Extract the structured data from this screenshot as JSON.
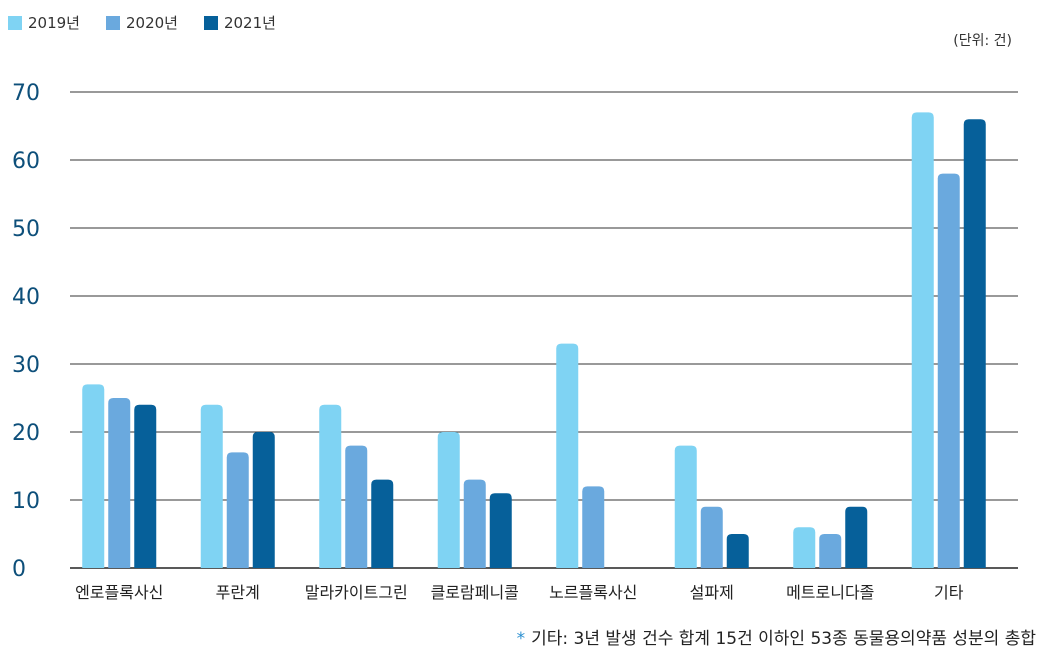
{
  "chart_data": {
    "type": "bar",
    "categories": [
      "엔로플록사신",
      "푸란계",
      "말라카이트그린",
      "클로람페니콜",
      "노르플록사신",
      "설파제",
      "메트로니다졸",
      "기타"
    ],
    "series": [
      {
        "name": "2019년",
        "color": "#7fd3f3",
        "values": [
          27,
          24,
          24,
          20,
          33,
          18,
          6,
          67
        ]
      },
      {
        "name": "2020년",
        "color": "#6aa9de",
        "values": [
          25,
          17,
          18,
          13,
          12,
          9,
          5,
          58
        ]
      },
      {
        "name": "2021년",
        "color": "#06609a",
        "values": [
          24,
          20,
          13,
          11,
          0,
          5,
          9,
          66
        ]
      }
    ],
    "ylim": [
      0,
      70
    ],
    "yticks": [
      0,
      10,
      20,
      30,
      40,
      50,
      60,
      70
    ],
    "unit_label": "(단위: 건)",
    "footnote": "기타: 3년 발생 건수 합계 15건 이하인 53종 동물용의약품 성분의 총합",
    "grid": true,
    "legend_position": "top-left"
  }
}
